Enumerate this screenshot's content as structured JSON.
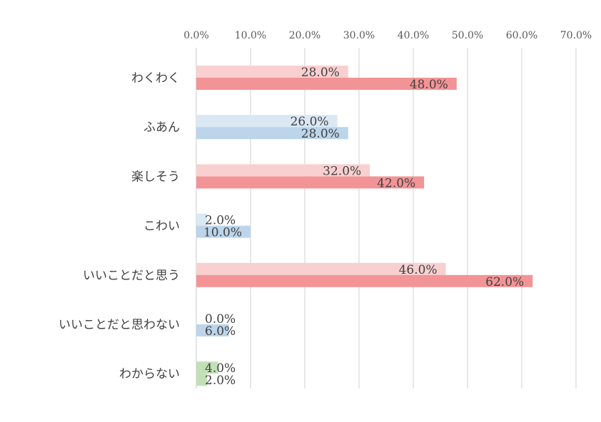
{
  "chart_data": {
    "type": "bar",
    "orientation": "horizontal",
    "categories": [
      "わくわく",
      "ふあん",
      "楽しそう",
      "こわい",
      "いいことだと思う",
      "いいことだと思わない",
      "わからない"
    ],
    "series": [
      {
        "values": [
          28.0,
          26.0,
          32.0,
          2.0,
          46.0,
          0.0,
          4.0
        ],
        "labels": [
          "28.0%",
          "26.0%",
          "32.0%",
          "2.0%",
          "46.0%",
          "0.0%",
          "4.0%"
        ],
        "colors": [
          "#f8d0d0",
          "#dae8f4",
          "#f8d0d0",
          "#dae8f4",
          "#f8d0d0",
          "#dae8f4",
          "#c2dfb6"
        ]
      },
      {
        "values": [
          48.0,
          28.0,
          42.0,
          10.0,
          62.0,
          6.0,
          2.0
        ],
        "labels": [
          "48.0%",
          "28.0%",
          "42.0%",
          "10.0%",
          "62.0%",
          "6.0%",
          "2.0%"
        ],
        "colors": [
          "#f29496",
          "#bcd5ea",
          "#f29496",
          "#bcd5ea",
          "#f29496",
          "#bcd5ea",
          "#c2dfb6"
        ]
      }
    ],
    "xlim": [
      0,
      70
    ],
    "x_ticks": [
      "0.0%",
      "10.0%",
      "20.0%",
      "30.0%",
      "40.0%",
      "50.0%",
      "60.0%",
      "70.0%"
    ],
    "axis_position": "top",
    "grid": true,
    "legend": "none"
  }
}
